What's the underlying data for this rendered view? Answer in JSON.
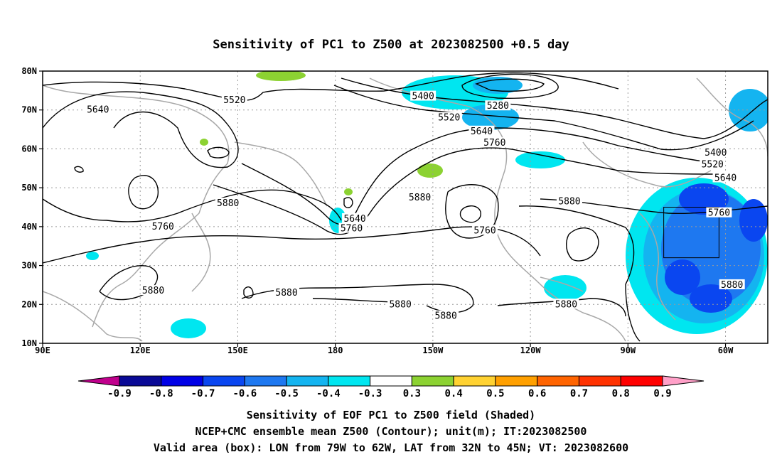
{
  "chart_data": {
    "type": "contour_map",
    "title": "Sensitivity of PC1 to Z500 at 2023082500 +0.5 day",
    "lon_range": [
      90,
      313
    ],
    "lat_range": [
      10,
      80
    ],
    "x_ticks": [
      {
        "lon": 90,
        "label": "90E"
      },
      {
        "lon": 120,
        "label": "120E"
      },
      {
        "lon": 150,
        "label": "150E"
      },
      {
        "lon": 180,
        "label": "180"
      },
      {
        "lon": 210,
        "label": "150W"
      },
      {
        "lon": 240,
        "label": "120W"
      },
      {
        "lon": 270,
        "label": "90W"
      },
      {
        "lon": 300,
        "label": "60W"
      }
    ],
    "y_ticks": [
      {
        "lat": 10,
        "label": "10N"
      },
      {
        "lat": 20,
        "label": "20N"
      },
      {
        "lat": 30,
        "label": "30N"
      },
      {
        "lat": 40,
        "label": "40N"
      },
      {
        "lat": 50,
        "label": "50N"
      },
      {
        "lat": 60,
        "label": "60N"
      },
      {
        "lat": 70,
        "label": "70N"
      },
      {
        "lat": 80,
        "label": "80N"
      }
    ],
    "grid": true,
    "colorbar": {
      "labels": [
        "-0.9",
        "-0.8",
        "-0.7",
        "-0.6",
        "-0.5",
        "-0.4",
        "-0.3",
        "0.3",
        "0.4",
        "0.5",
        "0.6",
        "0.7",
        "0.8",
        "0.9"
      ],
      "colors": [
        "#c0008c",
        "#0a0a96",
        "#0000e6",
        "#0a46f0",
        "#1e78f0",
        "#14b4f0",
        "#00e6f0",
        "#ffffff",
        "#8cd232",
        "#ffd232",
        "#ffa000",
        "#ff6400",
        "#ff3200",
        "#ff0000",
        "#ffa0c8"
      ]
    },
    "contour_labels": [
      {
        "text": "5640",
        "lon": 107,
        "lat": 70
      },
      {
        "text": "5520",
        "lon": 149,
        "lat": 72.5
      },
      {
        "text": "5400",
        "lon": 207,
        "lat": 73.5
      },
      {
        "text": "5280",
        "lon": 230,
        "lat": 71
      },
      {
        "text": "5520",
        "lon": 215,
        "lat": 68
      },
      {
        "text": "5640",
        "lon": 225,
        "lat": 64.5
      },
      {
        "text": "5760",
        "lon": 229,
        "lat": 61.5
      },
      {
        "text": "5400",
        "lon": 297,
        "lat": 59
      },
      {
        "text": "5520",
        "lon": 296,
        "lat": 56
      },
      {
        "text": "5640",
        "lon": 300,
        "lat": 52.5
      },
      {
        "text": "5760",
        "lon": 298,
        "lat": 43.5
      },
      {
        "text": "5880",
        "lon": 147,
        "lat": 46
      },
      {
        "text": "5760",
        "lon": 127,
        "lat": 40
      },
      {
        "text": "5640",
        "lon": 186,
        "lat": 42
      },
      {
        "text": "5760",
        "lon": 185,
        "lat": 39.5
      },
      {
        "text": "5880",
        "lon": 206,
        "lat": 47.5
      },
      {
        "text": "5760",
        "lon": 226,
        "lat": 39
      },
      {
        "text": "5880",
        "lon": 252,
        "lat": 46.5
      },
      {
        "text": "5880",
        "lon": 124,
        "lat": 23.5
      },
      {
        "text": "5880",
        "lon": 165,
        "lat": 23
      },
      {
        "text": "5880",
        "lon": 200,
        "lat": 20
      },
      {
        "text": "5880",
        "lon": 214,
        "lat": 17
      },
      {
        "text": "5880",
        "lon": 251,
        "lat": 20
      },
      {
        "text": "5880",
        "lon": 302,
        "lat": 25
      }
    ],
    "valid_box": {
      "lon": [
        281,
        298
      ],
      "lat": [
        32,
        45
      ]
    }
  },
  "caption": {
    "line1": "Sensitivity of EOF PC1 to Z500 field (Shaded)",
    "line2": "NCEP+CMC ensemble mean Z500 (Contour); unit(m); IT:2023082500",
    "line3": "Valid area (box): LON from 79W to 62W, LAT from 32N to 45N; VT: 2023082600"
  }
}
